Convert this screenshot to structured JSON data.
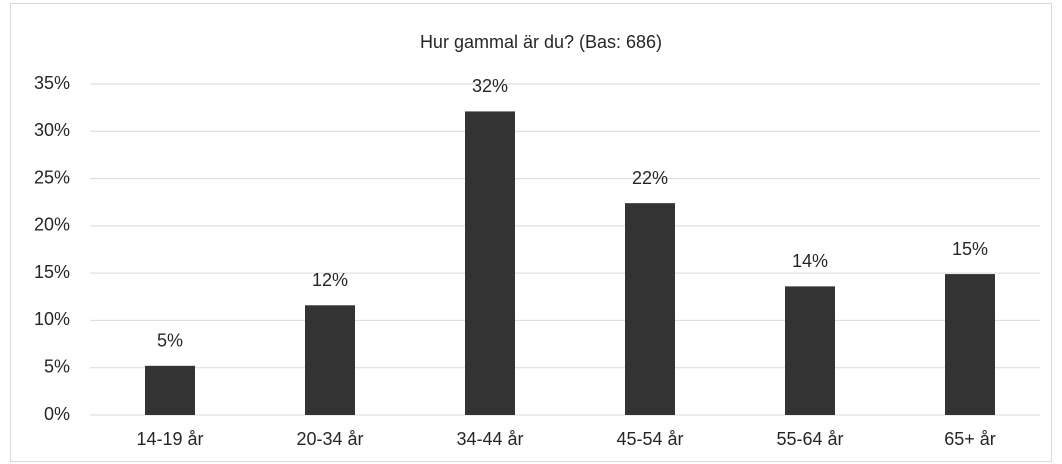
{
  "chart_data": {
    "type": "bar",
    "title": "Hur gammal är du? (Bas: 686)",
    "categories": [
      "14-19 år",
      "20-34 år",
      "34-44 år",
      "45-54 år",
      "55-64 år",
      "65+ år"
    ],
    "values": [
      5.2,
      11.6,
      32.1,
      22.4,
      13.6,
      14.9
    ],
    "value_labels": [
      "5%",
      "12%",
      "32%",
      "22%",
      "14%",
      "15%"
    ],
    "color": "#333333",
    "ylim": [
      0,
      35
    ],
    "yticks": [
      {
        "value": 0,
        "label": "0%"
      },
      {
        "value": 5,
        "label": "5%"
      },
      {
        "value": 10,
        "label": "10%"
      },
      {
        "value": 15,
        "label": "15%"
      },
      {
        "value": 20,
        "label": "20%"
      },
      {
        "value": 25,
        "label": "25%"
      },
      {
        "value": 30,
        "label": "30%"
      },
      {
        "value": 35,
        "label": "35%"
      }
    ],
    "grid": true
  }
}
